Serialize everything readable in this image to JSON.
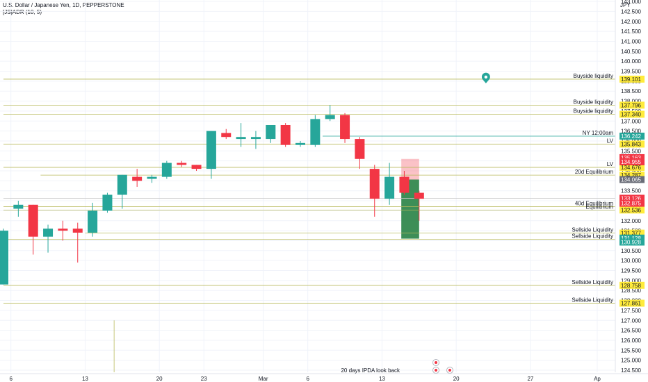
{
  "header": {
    "symbol_line": "U.S. Dollar / Japanese Yen, 1D, PEPPERSTONE",
    "indicator_line": "[JS]ADR (10, 5)"
  },
  "colors": {
    "up": "#26a69a",
    "down": "#f23645",
    "level_line": "#b7b85a",
    "label_bg": "#ffeb3b",
    "equilibrium_line": "#8a8a3a",
    "grid": "#f0f3fa"
  },
  "chart_data": {
    "type": "candlestick",
    "y_unit": "JPY",
    "ylim": [
      124.5,
      143.0
    ],
    "y_ticks": [
      "124.500",
      "125.000",
      "125.500",
      "126.000",
      "126.500",
      "127.000",
      "127.500",
      "128.000",
      "128.500",
      "129.000",
      "129.500",
      "130.000",
      "130.500",
      "131.000",
      "131.500",
      "132.000",
      "132.500",
      "133.000",
      "133.500",
      "134.000",
      "134.500",
      "135.000",
      "135.500",
      "136.000",
      "136.500",
      "137.000",
      "137.500",
      "138.000",
      "138.500",
      "139.000",
      "139.500",
      "140.000",
      "140.500",
      "141.000",
      "141.500",
      "142.000",
      "142.500",
      "143.000"
    ],
    "x_ticks": [
      {
        "index": 0.5,
        "label": "6"
      },
      {
        "index": 5.5,
        "label": "13"
      },
      {
        "index": 10.5,
        "label": "20"
      },
      {
        "index": 13.5,
        "label": "23"
      },
      {
        "index": 17.5,
        "label": "Mar"
      },
      {
        "index": 20.5,
        "label": "6"
      },
      {
        "index": 25.5,
        "label": "13"
      },
      {
        "index": 30.5,
        "label": "20"
      },
      {
        "index": 35.5,
        "label": "27"
      },
      {
        "index": 40.0,
        "label": "Ap"
      }
    ],
    "candles": [
      {
        "o": 128.8,
        "h": 131.6,
        "l": 128.8,
        "c": 131.5
      },
      {
        "o": 132.6,
        "h": 133.0,
        "l": 132.2,
        "c": 132.8
      },
      {
        "o": 132.8,
        "h": 132.8,
        "l": 130.3,
        "c": 131.2
      },
      {
        "o": 131.2,
        "h": 131.8,
        "l": 130.4,
        "c": 131.6
      },
      {
        "o": 131.6,
        "h": 132.0,
        "l": 131.0,
        "c": 131.5
      },
      {
        "o": 131.6,
        "h": 131.9,
        "l": 129.9,
        "c": 131.4
      },
      {
        "o": 131.4,
        "h": 132.9,
        "l": 131.2,
        "c": 132.5
      },
      {
        "o": 132.5,
        "h": 133.4,
        "l": 132.4,
        "c": 133.3
      },
      {
        "o": 133.3,
        "h": 134.3,
        "l": 132.6,
        "c": 134.3
      },
      {
        "o": 134.2,
        "h": 134.6,
        "l": 133.7,
        "c": 134.0
      },
      {
        "o": 134.1,
        "h": 134.3,
        "l": 133.9,
        "c": 134.2
      },
      {
        "o": 134.2,
        "h": 135.0,
        "l": 134.1,
        "c": 134.9
      },
      {
        "o": 134.9,
        "h": 135.0,
        "l": 134.7,
        "c": 134.8
      },
      {
        "o": 134.8,
        "h": 134.8,
        "l": 134.5,
        "c": 134.6
      },
      {
        "o": 134.6,
        "h": 136.5,
        "l": 134.1,
        "c": 136.5
      },
      {
        "o": 136.4,
        "h": 136.6,
        "l": 136.1,
        "c": 136.2
      },
      {
        "o": 136.1,
        "h": 136.9,
        "l": 135.7,
        "c": 136.2
      },
      {
        "o": 136.1,
        "h": 136.5,
        "l": 135.6,
        "c": 136.2
      },
      {
        "o": 136.1,
        "h": 136.8,
        "l": 135.9,
        "c": 136.8
      },
      {
        "o": 136.8,
        "h": 136.9,
        "l": 135.7,
        "c": 135.8
      },
      {
        "o": 135.8,
        "h": 136.0,
        "l": 135.7,
        "c": 135.9
      },
      {
        "o": 135.8,
        "h": 137.3,
        "l": 135.7,
        "c": 137.1
      },
      {
        "o": 137.1,
        "h": 137.8,
        "l": 137.0,
        "c": 137.3
      },
      {
        "o": 137.3,
        "h": 137.4,
        "l": 135.9,
        "c": 136.1
      },
      {
        "o": 136.1,
        "h": 136.2,
        "l": 134.6,
        "c": 135.1
      },
      {
        "o": 134.6,
        "h": 134.8,
        "l": 132.2,
        "c": 133.1
      },
      {
        "o": 133.1,
        "h": 134.9,
        "l": 132.8,
        "c": 134.2
      },
      {
        "o": 134.2,
        "h": 134.5,
        "l": 133.3,
        "c": 133.4
      },
      {
        "o": 133.4,
        "h": 133.5,
        "l": 132.0,
        "c": 133.1
      }
    ],
    "levels": [
      {
        "price": 139.101,
        "label": "Buyside liquidity",
        "value": "139.101",
        "x_start": 0,
        "style": "level"
      },
      {
        "price": 137.796,
        "label": "Buyside liquidity",
        "value": "137.796",
        "x_start": 0,
        "style": "level"
      },
      {
        "price": 137.34,
        "label": "Buyside liquidity",
        "value": "137.340",
        "x_start": 0,
        "style": "level"
      },
      {
        "price": 136.242,
        "label": "NY 12:00am",
        "value": "136.242",
        "x_start": 21.5,
        "style": "teal"
      },
      {
        "price": 135.843,
        "label": "LV",
        "value": "135.843",
        "x_start": 0,
        "style": "level"
      },
      {
        "price": 134.676,
        "label": "LV",
        "value": "134.676",
        "x_start": 0,
        "style": "level"
      },
      {
        "price": 134.287,
        "label": "20d Equilibrium",
        "value": "134.287",
        "x_start": 2.5,
        "style": "level"
      },
      {
        "price": 133.126,
        "label": "",
        "value": "133.126",
        "x_start": 0,
        "style": "gray"
      },
      {
        "price": 132.705,
        "label": "40d Equilibrium",
        "value": "132.705",
        "x_start": 0,
        "style": "level"
      },
      {
        "price": 132.536,
        "label": "Equilibrium",
        "value": "132.536",
        "x_start": 0,
        "style": "level"
      },
      {
        "price": 131.377,
        "label": "Sellside Liquidity",
        "value": "131.377",
        "x_start": 5.5,
        "style": "level"
      },
      {
        "price": 131.071,
        "label": "Sellside Liquidity",
        "value": "131.071",
        "x_start": 0,
        "style": "level"
      },
      {
        "price": 128.758,
        "label": "Sellside Liquidity",
        "value": "128.758",
        "x_start": 0,
        "style": "level"
      },
      {
        "price": 127.861,
        "label": "Sellside Liquidity",
        "value": "127.861",
        "x_start": 0,
        "style": "level"
      }
    ],
    "axis_badges": [
      {
        "price": 136.242,
        "value": "136.242",
        "bg": "#26a69a",
        "fg": "#ffffff"
      },
      {
        "price": 135.163,
        "value": "135.163",
        "bg": "#f23645",
        "fg": "#ffffff"
      },
      {
        "price": 134.955,
        "value": "134.955",
        "bg": "#f23645",
        "fg": "#ffffff"
      },
      {
        "price": 134.065,
        "value": "134.065",
        "bg": "#6a6d78",
        "fg": "#ffffff"
      },
      {
        "price": 133.126,
        "value": "133.126",
        "bg": "#f23645",
        "fg": "#ffffff"
      },
      {
        "price": 132.875,
        "value": "132.875",
        "bg": "#f23645",
        "fg": "#ffffff"
      },
      {
        "price": 131.128,
        "value": "131.128",
        "bg": "#26a69a",
        "fg": "#ffffff"
      },
      {
        "price": 130.928,
        "value": "130.928",
        "bg": "#26a69a",
        "fg": "#ffffff"
      }
    ],
    "position_zone": {
      "x_from": 26.8,
      "x_to": 28.0,
      "entry": 134.065,
      "stop": 135.1,
      "target": 131.1
    },
    "alert_marker": {
      "index": 32.5,
      "price": 139.1
    },
    "vertical_marker": {
      "index": 7.5,
      "price_top": 127.0
    },
    "annotation": {
      "text": "20 days IPDA look back",
      "index": 23.5,
      "price": 124.5
    }
  }
}
